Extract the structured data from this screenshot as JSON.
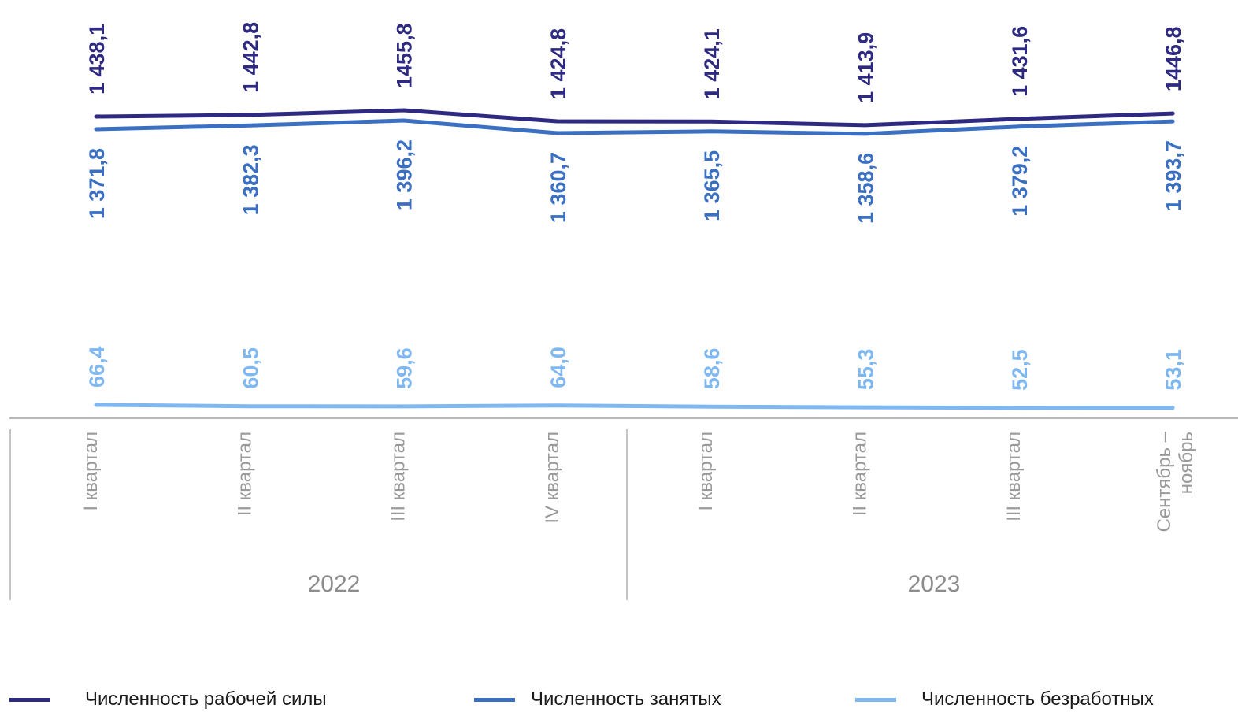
{
  "chart_data": {
    "type": "line",
    "categories": [
      "I квартал",
      "II квартал",
      "III квартал",
      "IV квартал",
      "I квартал",
      "II квартал",
      "III квартал",
      "Сентябрь – ноябрь"
    ],
    "groups": [
      {
        "label": "2022",
        "categories": [
          "I квартал",
          "II квартал",
          "III квартал",
          "IV квартал"
        ]
      },
      {
        "label": "2023",
        "categories": [
          "I квартал",
          "II квартал",
          "III квартал",
          "Сентябрь – ноябрь"
        ]
      }
    ],
    "series": [
      {
        "name": "Численность рабочей силы",
        "color": "#2e2a82",
        "values": [
          1438.1,
          1442.8,
          1455.8,
          1424.8,
          1424.1,
          1413.9,
          1431.6,
          1446.8
        ],
        "labels": [
          "1 438,1",
          "1 442,8",
          "1455,8",
          "1 424,8",
          "1 424,1",
          "1 413,9",
          "1 431,6",
          "1446,8"
        ]
      },
      {
        "name": "Численность занятых",
        "color": "#3a6fc2",
        "values": [
          1371.8,
          1382.3,
          1396.2,
          1360.7,
          1365.5,
          1358.6,
          1379.2,
          1393.7
        ],
        "labels": [
          "1 371,8",
          "1 382,3",
          "1 396,2",
          "1 360,7",
          "1 365,5",
          "1 358,6",
          "1 379,2",
          "1 393,7"
        ]
      },
      {
        "name": "Численность безработных",
        "color": "#7fb8f0",
        "values": [
          66.4,
          60.5,
          59.6,
          64.0,
          58.6,
          55.3,
          52.5,
          53.1
        ],
        "labels": [
          "66,4",
          "60,5",
          "59,6",
          "64,0",
          "58,6",
          "55,3",
          "52,5",
          "53,1"
        ]
      }
    ],
    "legend_position": "bottom",
    "grid": false
  }
}
